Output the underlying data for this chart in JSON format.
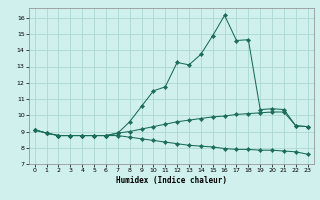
{
  "xlabel": "Humidex (Indice chaleur)",
  "bg_color": "#cff0ec",
  "grid_color": "#aad8d2",
  "line_color": "#1a6b5a",
  "xlim": [
    -0.5,
    23.5
  ],
  "ylim": [
    7.0,
    16.6
  ],
  "yticks": [
    7,
    8,
    9,
    10,
    11,
    12,
    13,
    14,
    15,
    16
  ],
  "xticks": [
    0,
    1,
    2,
    3,
    4,
    5,
    6,
    7,
    8,
    9,
    10,
    11,
    12,
    13,
    14,
    15,
    16,
    17,
    18,
    19,
    20,
    21,
    22,
    23
  ],
  "series1_x": [
    0,
    1,
    2,
    3,
    4,
    5,
    6,
    7,
    8,
    9,
    10,
    11,
    12,
    13,
    14,
    15,
    16,
    17,
    18,
    19,
    20,
    21,
    22,
    23
  ],
  "series1_y": [
    9.1,
    8.9,
    8.75,
    8.75,
    8.75,
    8.75,
    8.75,
    8.9,
    9.6,
    10.55,
    11.5,
    11.75,
    13.25,
    13.1,
    13.75,
    14.9,
    16.15,
    14.6,
    14.65,
    10.35,
    10.4,
    10.35,
    9.35,
    9.3
  ],
  "series2_x": [
    0,
    1,
    2,
    3,
    4,
    5,
    6,
    7,
    8,
    9,
    10,
    11,
    12,
    13,
    14,
    15,
    16,
    17,
    18,
    19,
    20,
    21,
    22,
    23
  ],
  "series2_y": [
    9.1,
    8.9,
    8.75,
    8.75,
    8.75,
    8.75,
    8.75,
    8.9,
    9.0,
    9.15,
    9.3,
    9.45,
    9.6,
    9.7,
    9.8,
    9.9,
    9.95,
    10.05,
    10.1,
    10.15,
    10.2,
    10.2,
    9.35,
    9.3
  ],
  "series3_x": [
    0,
    1,
    2,
    3,
    4,
    5,
    6,
    7,
    8,
    9,
    10,
    11,
    12,
    13,
    14,
    15,
    16,
    17,
    18,
    19,
    20,
    21,
    22,
    23
  ],
  "series3_y": [
    9.1,
    8.9,
    8.75,
    8.75,
    8.75,
    8.75,
    8.75,
    8.75,
    8.65,
    8.55,
    8.45,
    8.35,
    8.25,
    8.15,
    8.1,
    8.05,
    7.95,
    7.9,
    7.9,
    7.85,
    7.85,
    7.8,
    7.75,
    7.6
  ]
}
